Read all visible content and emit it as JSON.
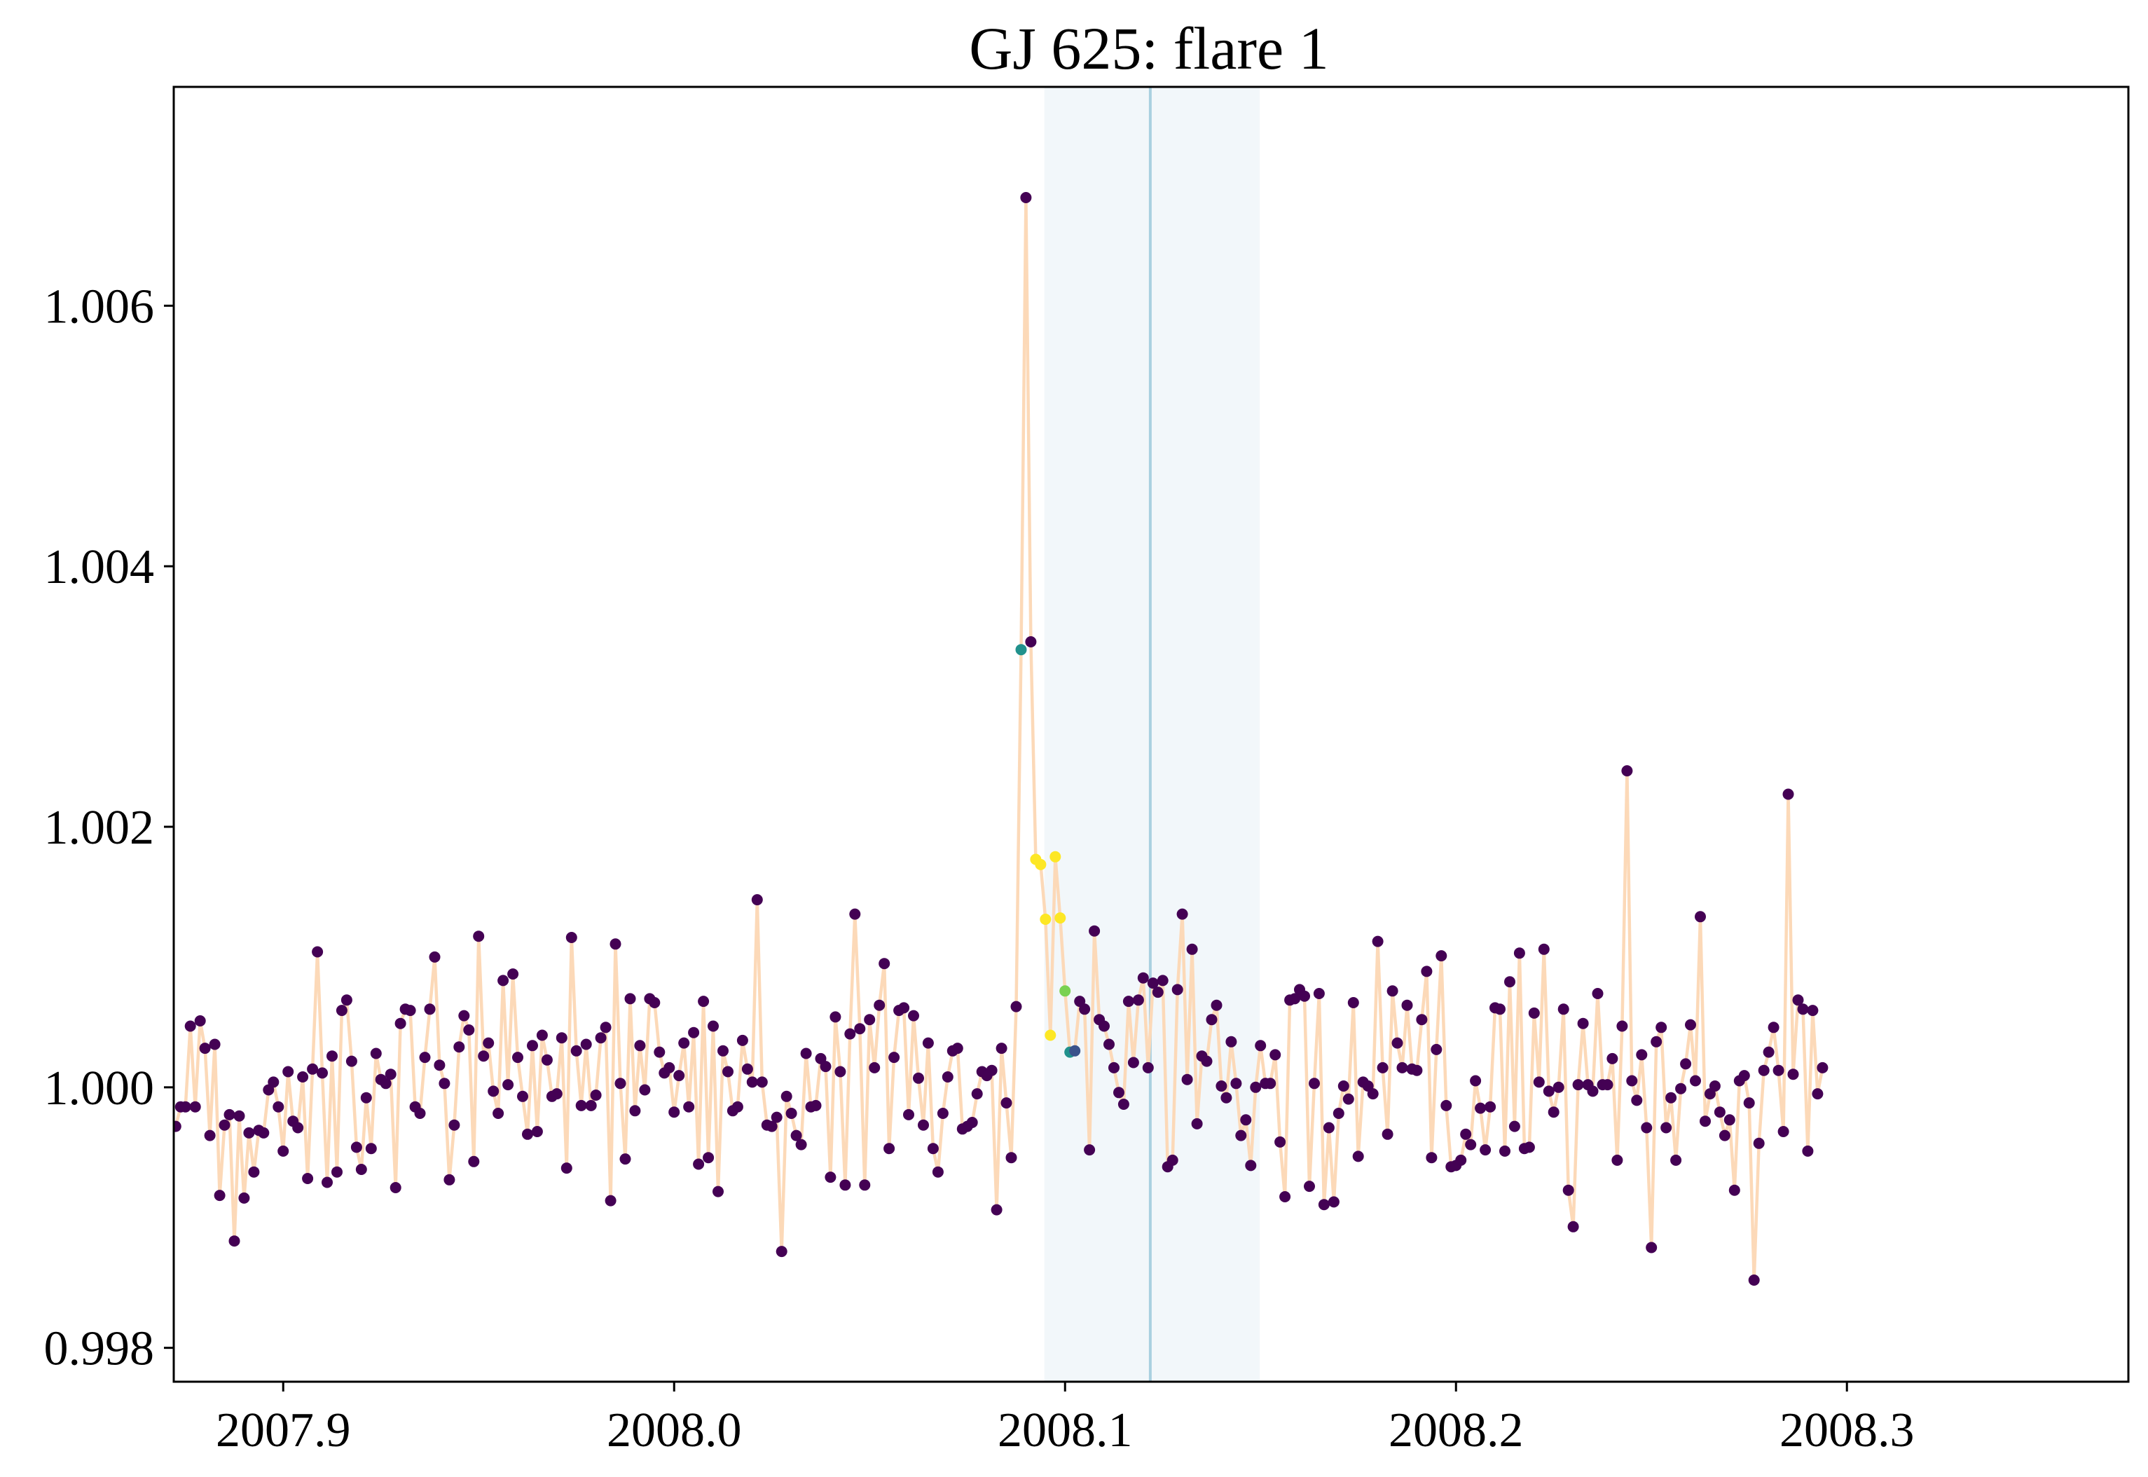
{
  "chart_data": {
    "type": "scatter",
    "title": "GJ 625: flare 1",
    "xlabel": "",
    "ylabel": "",
    "xlim": [
      2007.872,
      2008.372
    ],
    "ylim": [
      0.99774,
      1.00768
    ],
    "xticks": [
      2007.9,
      2008.0,
      2008.1,
      2008.2,
      2008.3
    ],
    "xtick_labels": [
      "2007.9",
      "2008.0",
      "2008.1",
      "2008.2",
      "2008.3"
    ],
    "yticks": [
      0.998,
      1.0,
      1.002,
      1.004,
      1.006
    ],
    "ytick_labels": [
      "0.998",
      "1.000",
      "1.002",
      "1.004",
      "1.006"
    ],
    "grid": false,
    "legend": "none",
    "highlight_span": [
      2008.0947,
      2008.1498
    ],
    "flare_peak_x": 2008.1218,
    "colors": {
      "line": "#fcd9b8",
      "span": "#e2eef5",
      "vline": "#a9d0e0",
      "baseline_point": "#440154",
      "flare_points": [
        "#fde725",
        "#7ad151",
        "#21918c",
        "#3b528b"
      ]
    },
    "x_start": 2007.8725,
    "x_step": 0.00125,
    "series": [
      {
        "values": [
          0.9997,
          0.99985,
          0.99985,
          1.00047,
          0.99985,
          1.00051,
          1.0003,
          0.99963,
          1.00033,
          0.99917,
          0.99971,
          0.99979,
          0.99882,
          0.99978,
          0.99915,
          0.99965,
          0.99935,
          0.99967,
          0.99965,
          0.99998,
          1.00004,
          0.99985,
          0.99951,
          1.00012,
          0.99974,
          0.99969,
          1.00008,
          0.9993,
          1.00014,
          1.00104,
          1.00011,
          0.99927,
          1.00024,
          0.99935,
          1.00059,
          1.00067,
          1.0002,
          0.99954,
          0.99937,
          0.99992,
          0.99953,
          1.00026,
          1.00006,
          1.00003,
          1.0001,
          0.99923,
          1.00049,
          1.0006,
          1.00059,
          0.99985,
          0.9998,
          1.00023,
          1.0006,
          1.001,
          1.00017,
          1.00003,
          0.99929,
          0.99971,
          1.00031,
          1.00055,
          1.00044,
          0.99943,
          1.00116,
          1.00024,
          1.00034,
          0.99997,
          0.9998,
          1.00082,
          1.00002,
          1.00087,
          1.00023,
          0.99993,
          0.99964,
          1.00032,
          0.99966,
          1.0004,
          1.00021,
          0.99993,
          0.99995,
          1.00038,
          0.99938,
          1.00115,
          1.00028,
          0.99986,
          1.00033,
          0.99986,
          0.99994,
          1.00038,
          1.00046,
          0.99913,
          1.0011,
          1.00003,
          0.99945,
          1.00068,
          0.99982,
          1.00032,
          0.99998,
          1.00068,
          1.00065,
          1.00027,
          1.00011,
          1.00015,
          0.99981,
          1.00009,
          1.00034,
          0.99985,
          1.00042,
          0.99941,
          1.00066,
          0.99946,
          1.00047,
          0.9992,
          1.00028,
          1.00012,
          0.99982,
          0.99985,
          1.00036,
          1.00014,
          1.00004,
          1.00144,
          1.00004,
          0.99971,
          0.9997,
          0.99977,
          0.99874,
          0.99993,
          0.9998,
          0.99963,
          0.99956,
          1.00026,
          0.99985,
          0.99986,
          1.00022,
          1.00016,
          0.99931,
          1.00054,
          1.00012,
          0.99925,
          1.00041,
          1.00133,
          1.00045,
          0.99925,
          1.00052,
          1.00015,
          1.00063,
          1.00095,
          0.99953,
          1.00023,
          1.00059,
          1.00061,
          0.99979,
          1.00055,
          1.00007,
          0.99971,
          1.00034,
          0.99953,
          0.99935,
          0.9998,
          1.00008,
          1.00028,
          1.0003,
          0.99968,
          0.9997,
          0.99973,
          0.99995,
          1.00012,
          1.00009,
          1.00013,
          0.99906,
          1.0003,
          0.99988,
          0.99946,
          1.00062,
          1.00336,
          1.00683,
          1.00342,
          1.00175,
          1.00171,
          1.00129,
          1.0004,
          1.00177,
          1.0013,
          1.00074,
          1.00027,
          1.00028,
          1.00066,
          1.0006,
          0.99952,
          1.0012,
          1.00052,
          1.00047,
          1.00033,
          1.00015,
          0.99996,
          0.99987,
          1.00066,
          1.00019,
          1.00067,
          1.00084,
          1.00015,
          1.0008,
          1.00073,
          1.00082,
          0.99939,
          0.99944,
          1.00075,
          1.00133,
          1.00006,
          1.00106,
          0.99972,
          1.00024,
          1.0002,
          1.00052,
          1.00063,
          1.00001,
          0.99992,
          1.00035,
          1.00003,
          0.99963,
          0.99975,
          0.9994,
          1.0,
          1.00032,
          1.00003,
          1.00003,
          1.00025,
          0.99958,
          0.99916,
          1.00067,
          1.00068,
          1.00075,
          1.0007,
          0.99924,
          1.00003,
          1.00072,
          0.9991,
          0.99969,
          0.99912,
          0.9998,
          1.00001,
          0.99991,
          1.00065,
          0.99947,
          1.00004,
          1.00001,
          0.99995,
          1.00112,
          1.00015,
          0.99964,
          1.00074,
          1.00034,
          1.00015,
          1.00063,
          1.00014,
          1.00013,
          1.00052,
          1.00089,
          0.99946,
          1.00029,
          1.00101,
          0.99986,
          0.99939,
          0.9994,
          0.99944,
          0.99964,
          0.99956,
          1.00005,
          0.99984,
          0.99952,
          0.99985,
          1.00061,
          1.0006,
          0.99951,
          1.00081,
          0.9997,
          1.00103,
          0.99953,
          0.99954,
          1.00057,
          1.00004,
          1.00106,
          0.99997,
          0.99981,
          1.0,
          1.0006,
          0.99921,
          0.99893,
          1.00002,
          1.00049,
          1.00002,
          0.99997,
          1.00072,
          1.00002,
          1.00002,
          1.00022,
          0.99944,
          1.00047,
          1.00243,
          1.00005,
          0.9999,
          1.00025,
          0.99969,
          0.99877,
          1.00035,
          1.00046,
          0.99969,
          0.99992,
          0.99944,
          0.99999,
          1.00018,
          1.00048,
          1.00005,
          1.00131,
          0.99974,
          0.99995,
          1.00001,
          0.99981,
          0.99963,
          0.99975,
          0.99921,
          1.00005,
          1.00009,
          0.99988,
          0.99852,
          0.99957,
          1.00013,
          1.00027,
          1.00046,
          1.00013,
          0.99966,
          1.00225,
          1.0001,
          1.00067,
          1.0006,
          0.99951,
          1.00059,
          0.99995,
          1.00015
        ]
      }
    ],
    "flare_point_colors": {
      "173": "#21918c",
      "176": "#fde725",
      "177": "#fde725",
      "178": "#fde725",
      "179": "#fde725",
      "180": "#fde725",
      "181": "#fde725",
      "182": "#7ad151",
      "183": "#21918c",
      "184": "#3b528b"
    }
  }
}
